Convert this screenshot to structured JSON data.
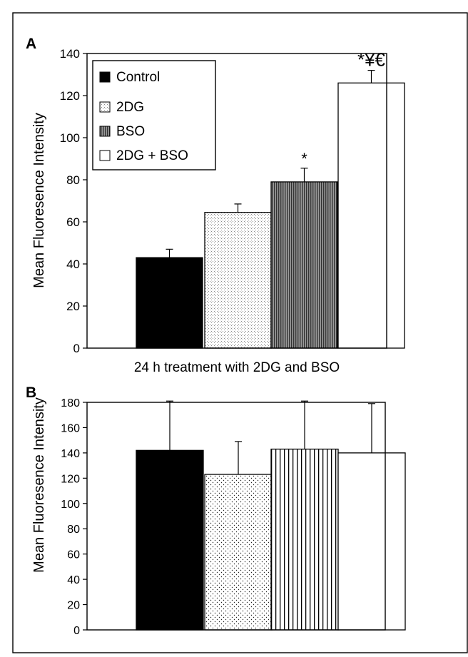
{
  "chart_data": [
    {
      "panel_label": "A",
      "type": "bar",
      "xlabel": "24 h treatment with 2DG and BSO",
      "ylabel": "Mean Fluoresence Intensity",
      "ylim": [
        0,
        140
      ],
      "yticks": [
        "0",
        "20",
        "40",
        "60",
        "80",
        "100",
        "120",
        "140"
      ],
      "legend": {
        "placement": "top-left",
        "entries": [
          "Control",
          "2DG",
          "BSO",
          "2DG + BSO"
        ]
      },
      "series": [
        {
          "name": "Control",
          "values": [
            43
          ],
          "error": [
            4
          ],
          "annotation": ""
        },
        {
          "name": "2DG",
          "values": [
            64.5
          ],
          "error": [
            4
          ],
          "annotation": ""
        },
        {
          "name": "BSO",
          "values": [
            79
          ],
          "error": [
            6.5
          ],
          "annotation": "*"
        },
        {
          "name": "2DG + BSO",
          "values": [
            126
          ],
          "error": [
            6
          ],
          "annotation": "*¥€"
        }
      ]
    },
    {
      "panel_label": "B",
      "type": "bar",
      "xlabel": "",
      "ylabel": "Mean Fluoresence Intensity",
      "ylim": [
        0,
        180
      ],
      "yticks": [
        "0",
        "20",
        "40",
        "60",
        "80",
        "100",
        "120",
        "140",
        "160",
        "180"
      ],
      "series": [
        {
          "name": "Control",
          "values": [
            142
          ],
          "error": [
            39
          ]
        },
        {
          "name": "2DG",
          "values": [
            123
          ],
          "error": [
            26
          ]
        },
        {
          "name": "BSO",
          "values": [
            143
          ],
          "error": [
            38
          ]
        },
        {
          "name": "2DG + BSO",
          "values": [
            140
          ],
          "error": [
            39
          ]
        }
      ]
    }
  ],
  "colors": {
    "control": "#000000",
    "dg_pattern": "#8a8a8a",
    "bso_pattern": "#333333",
    "combo": "#ffffff"
  }
}
